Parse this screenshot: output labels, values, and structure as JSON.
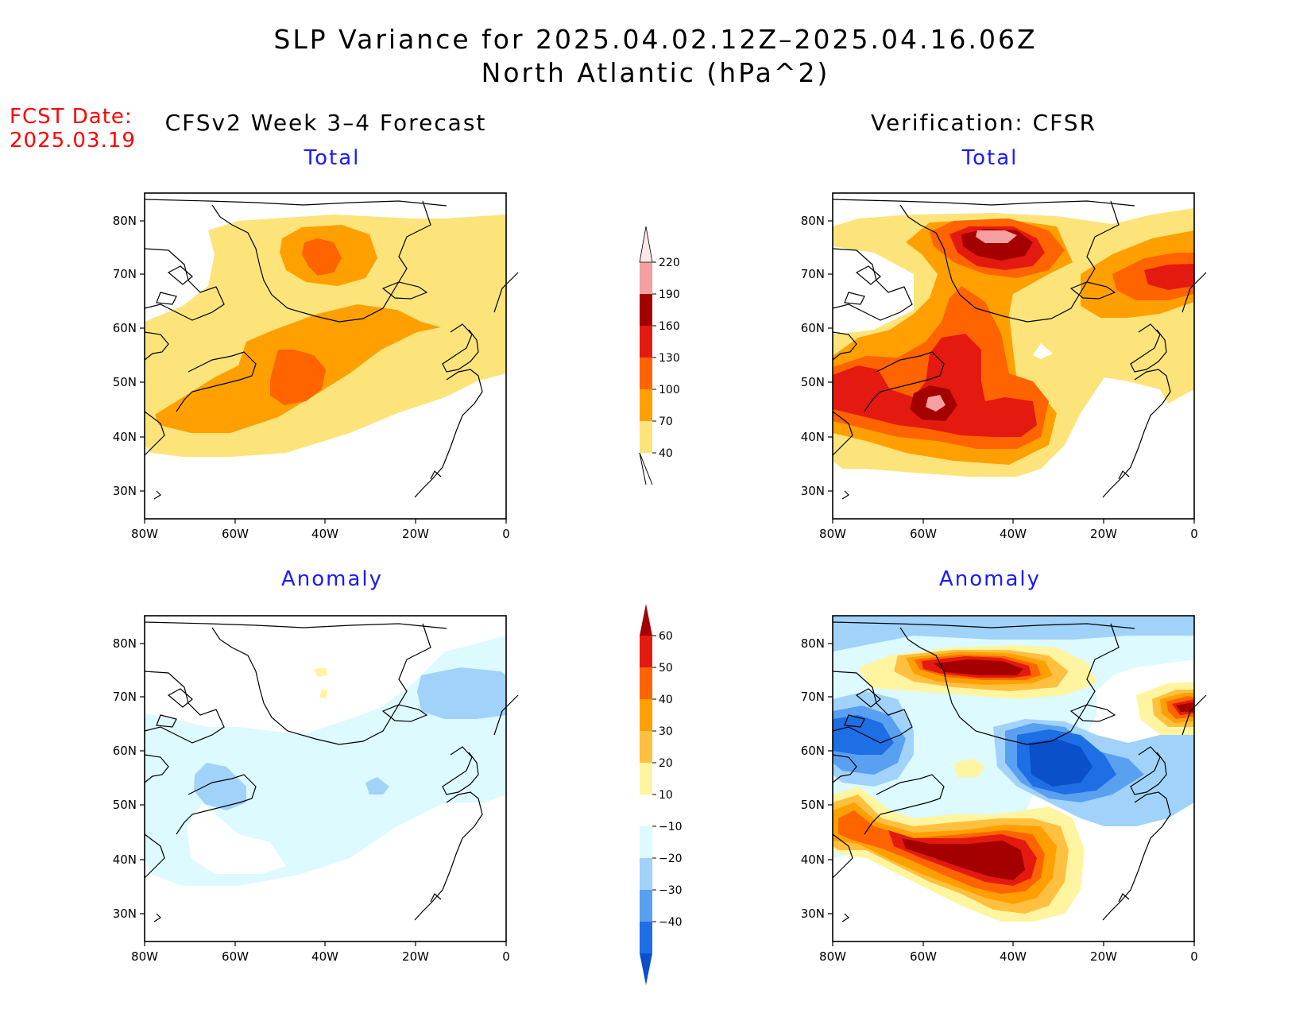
{
  "header": {
    "title_line1": "SLP Variance for 2025.04.02.12Z–2025.04.16.06Z",
    "title_line2": "North Atlantic (hPa^2)",
    "fcst_label": "FCST Date:",
    "fcst_date": "2025.03.19"
  },
  "columns": {
    "left": "CFSv2 Week 3–4 Forecast",
    "right": "Verification: CFSR"
  },
  "panels": {
    "top_left": "Total",
    "top_right": "Total",
    "bottom_left": "Anomaly",
    "bottom_right": "Anomaly"
  },
  "axes": {
    "lat_labels": [
      "80N",
      "70N",
      "60N",
      "50N",
      "40N",
      "30N"
    ],
    "lon_labels": [
      "80W",
      "60W",
      "40W",
      "20W",
      "0"
    ]
  },
  "total_colorbar": {
    "levels": [
      "40",
      "70",
      "100",
      "130",
      "160",
      "190",
      "220"
    ],
    "colors": [
      "#fde47a",
      "#ffa000",
      "#ff6400",
      "#e41a10",
      "#a50000",
      "#f4a0a0",
      "#ffe6e6"
    ]
  },
  "anomaly_colorbar": {
    "levels": [
      "60",
      "50",
      "40",
      "30",
      "20",
      "10",
      "−10",
      "−20",
      "−30",
      "−40"
    ],
    "colors": [
      "#a50000",
      "#e41a10",
      "#ff6400",
      "#ffa000",
      "#ffc040",
      "#fff5a0",
      "#ffffff",
      "#dcfaff",
      "#a0d2fa",
      "#5aa0f0",
      "#1e6ee6",
      "#0a50c8"
    ]
  }
}
